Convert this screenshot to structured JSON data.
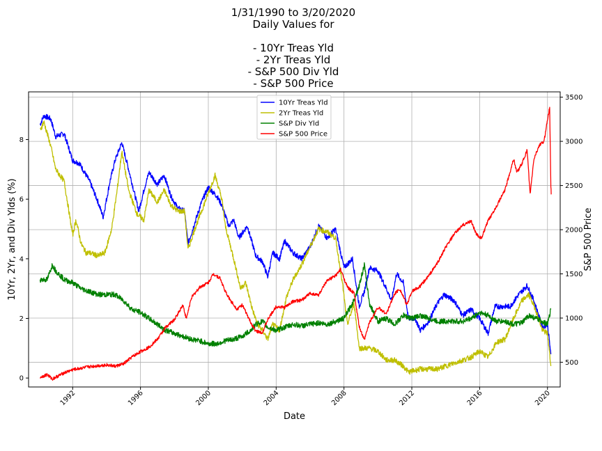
{
  "chart_data": {
    "type": "line",
    "title_lines": [
      "1/31/1990 to 3/20/2020",
      "Daily Values for",
      "",
      "- 10Yr Treas Yld",
      "- 2Yr Treas Yld",
      "- S&P 500 Div Yld",
      "- S&P 500 Price"
    ],
    "xlabel": "Date",
    "ylabel_left": "10Yr, 2Yr, and Div Ylds (%)",
    "ylabel_right": "S&P 500 Price",
    "xlim": [
      1989.4,
      2020.75
    ],
    "ylim_left": [
      -0.3,
      9.6
    ],
    "ylim_right": [
      220,
      3560
    ],
    "x_ticks": [
      1992,
      1996,
      2000,
      2004,
      2008,
      2012,
      2016,
      2020
    ],
    "x_tick_labels": [
      "1992",
      "1996",
      "2000",
      "2004",
      "2008",
      "2012",
      "2016",
      "2020"
    ],
    "y_left_ticks": [
      0,
      2,
      4,
      6,
      8
    ],
    "y_left_tick_labels": [
      "0",
      "2",
      "4",
      "6",
      "8"
    ],
    "y_right_ticks": [
      500,
      1000,
      1500,
      2000,
      2500,
      3000,
      3500
    ],
    "y_right_tick_labels": [
      "500",
      "1000",
      "1500",
      "2000",
      "2500",
      "3000",
      "3500"
    ],
    "grid": true,
    "legend_position": "top-center",
    "series": [
      {
        "name": "10Yr Treas Yld",
        "color": "#0000ff",
        "axis": "left",
        "x": [
          1990.08,
          1990.3,
          1990.7,
          1991.0,
          1991.5,
          1992.0,
          1992.4,
          1993.0,
          1993.5,
          1993.8,
          1994.2,
          1994.5,
          1994.9,
          1995.3,
          1995.9,
          1996.2,
          1996.5,
          1997.0,
          1997.4,
          1997.8,
          1998.2,
          1998.6,
          1998.8,
          1999.2,
          1999.6,
          2000.0,
          2000.5,
          2000.8,
          2001.2,
          2001.5,
          2001.8,
          2002.3,
          2002.8,
          2003.2,
          2003.5,
          2003.8,
          2004.2,
          2004.5,
          2005.0,
          2005.5,
          2006.0,
          2006.5,
          2007.0,
          2007.5,
          2008.0,
          2008.5,
          2008.9,
          2009.2,
          2009.5,
          2010.0,
          2010.5,
          2010.8,
          2011.1,
          2011.5,
          2011.8,
          2012.2,
          2012.5,
          2013.0,
          2013.5,
          2013.9,
          2014.5,
          2015.0,
          2015.5,
          2016.0,
          2016.5,
          2016.9,
          2017.2,
          2017.8,
          2018.3,
          2018.8,
          2019.2,
          2019.7,
          2020.0,
          2020.2
        ],
        "y": [
          8.5,
          8.8,
          8.7,
          8.1,
          8.2,
          7.3,
          7.2,
          6.6,
          5.9,
          5.4,
          6.6,
          7.3,
          7.9,
          7.0,
          5.6,
          6.3,
          6.9,
          6.5,
          6.8,
          6.1,
          5.7,
          5.6,
          4.5,
          5.2,
          5.9,
          6.4,
          6.1,
          5.8,
          5.1,
          5.3,
          4.7,
          5.1,
          4.1,
          3.9,
          3.4,
          4.2,
          4.0,
          4.6,
          4.2,
          4.0,
          4.4,
          5.1,
          4.7,
          5.0,
          3.7,
          4.0,
          2.4,
          2.9,
          3.7,
          3.6,
          3.0,
          2.6,
          3.5,
          3.2,
          2.0,
          2.0,
          1.6,
          1.9,
          2.5,
          2.8,
          2.6,
          2.1,
          2.3,
          2.0,
          1.5,
          2.4,
          2.4,
          2.4,
          2.8,
          3.1,
          2.6,
          1.7,
          1.8,
          0.8
        ]
      },
      {
        "name": "2Yr Treas Yld",
        "color": "#bfbf00",
        "axis": "left",
        "x": [
          1990.08,
          1990.3,
          1990.7,
          1991.0,
          1991.5,
          1992.0,
          1992.2,
          1992.5,
          1992.8,
          1993.0,
          1993.5,
          1993.9,
          1994.3,
          1994.6,
          1994.9,
          1995.3,
          1995.8,
          1996.2,
          1996.5,
          1997.0,
          1997.4,
          1997.8,
          1998.2,
          1998.6,
          1998.8,
          1999.2,
          1999.6,
          2000.0,
          2000.4,
          2000.8,
          2001.0,
          2001.5,
          2001.9,
          2002.2,
          2002.6,
          2002.9,
          2003.2,
          2003.5,
          2003.8,
          2004.2,
          2004.6,
          2005.0,
          2005.5,
          2006.0,
          2006.5,
          2007.0,
          2007.5,
          2007.9,
          2008.2,
          2008.6,
          2008.9,
          2009.5,
          2010.0,
          2010.5,
          2011.0,
          2011.5,
          2011.8,
          2012.5,
          2013.0,
          2013.5,
          2014.0,
          2014.5,
          2015.0,
          2015.5,
          2016.0,
          2016.5,
          2017.0,
          2017.5,
          2018.0,
          2018.5,
          2018.9,
          2019.3,
          2019.7,
          2020.0,
          2020.2
        ],
        "y": [
          8.3,
          8.6,
          7.8,
          7.0,
          6.6,
          4.8,
          5.3,
          4.5,
          4.2,
          4.2,
          4.1,
          4.2,
          5.0,
          6.2,
          7.6,
          6.3,
          5.5,
          5.3,
          6.3,
          5.9,
          6.3,
          5.8,
          5.6,
          5.6,
          4.3,
          5.0,
          5.6,
          6.2,
          6.8,
          6.0,
          5.1,
          4.0,
          3.0,
          3.2,
          2.3,
          1.8,
          1.6,
          1.3,
          1.8,
          1.6,
          2.7,
          3.3,
          3.8,
          4.4,
          5.0,
          4.9,
          4.7,
          3.2,
          1.8,
          2.5,
          1.0,
          1.0,
          0.9,
          0.6,
          0.6,
          0.4,
          0.2,
          0.3,
          0.3,
          0.3,
          0.4,
          0.5,
          0.6,
          0.7,
          0.9,
          0.7,
          1.2,
          1.3,
          2.0,
          2.6,
          2.8,
          2.3,
          1.6,
          1.5,
          0.4
        ]
      },
      {
        "name": "S&P Div Yld",
        "color": "#008000",
        "axis": "left",
        "x": [
          1990.08,
          1990.5,
          1990.8,
          1991.0,
          1991.5,
          1992.0,
          1992.5,
          1993.0,
          1993.5,
          1994.0,
          1994.5,
          1995.0,
          1995.5,
          1996.0,
          1996.5,
          1997.0,
          1997.5,
          1998.0,
          1998.5,
          1999.0,
          1999.5,
          2000.0,
          2000.5,
          2001.0,
          2001.5,
          2002.0,
          2002.5,
          2002.8,
          2003.2,
          2003.5,
          2004.0,
          2004.5,
          2005.0,
          2005.5,
          2006.0,
          2006.5,
          2007.0,
          2007.5,
          2008.0,
          2008.5,
          2008.9,
          2009.2,
          2009.5,
          2010.0,
          2010.5,
          2011.0,
          2011.5,
          2012.0,
          2012.5,
          2013.0,
          2013.5,
          2014.0,
          2014.5,
          2015.0,
          2015.5,
          2016.0,
          2016.5,
          2017.0,
          2017.5,
          2018.0,
          2018.5,
          2018.9,
          2019.3,
          2019.7,
          2020.0,
          2020.2
        ],
        "y": [
          3.3,
          3.3,
          3.8,
          3.6,
          3.3,
          3.2,
          3.0,
          2.9,
          2.8,
          2.8,
          2.8,
          2.6,
          2.3,
          2.2,
          2.0,
          1.8,
          1.6,
          1.5,
          1.4,
          1.3,
          1.25,
          1.15,
          1.15,
          1.25,
          1.3,
          1.4,
          1.6,
          1.8,
          1.9,
          1.7,
          1.6,
          1.7,
          1.8,
          1.75,
          1.8,
          1.85,
          1.8,
          1.9,
          2.0,
          2.5,
          3.1,
          3.8,
          2.5,
          1.9,
          2.0,
          1.8,
          2.1,
          2.0,
          2.1,
          2.0,
          1.9,
          1.9,
          1.9,
          1.9,
          2.0,
          2.2,
          2.1,
          1.9,
          1.9,
          1.8,
          1.85,
          2.1,
          2.0,
          1.9,
          1.8,
          2.3
        ]
      },
      {
        "name": "S&P 500 Price",
        "color": "#ff0000",
        "axis": "right",
        "x": [
          1990.08,
          1990.5,
          1990.8,
          1991.0,
          1991.5,
          1992.0,
          1993.0,
          1994.0,
          1994.5,
          1995.0,
          1995.5,
          1996.0,
          1996.5,
          1997.0,
          1997.5,
          1998.0,
          1998.5,
          1998.7,
          1999.0,
          1999.5,
          2000.0,
          2000.3,
          2000.7,
          2001.0,
          2001.3,
          2001.7,
          2002.0,
          2002.5,
          2002.8,
          2003.2,
          2003.5,
          2004.0,
          2004.5,
          2005.0,
          2005.5,
          2006.0,
          2006.5,
          2007.0,
          2007.5,
          2007.8,
          2008.2,
          2008.6,
          2008.9,
          2009.2,
          2009.5,
          2010.0,
          2010.5,
          2011.0,
          2011.3,
          2011.7,
          2012.0,
          2012.5,
          2013.0,
          2013.5,
          2014.0,
          2014.5,
          2015.0,
          2015.5,
          2015.8,
          2016.1,
          2016.5,
          2017.0,
          2017.5,
          2018.0,
          2018.2,
          2018.5,
          2018.8,
          2018.98,
          2019.2,
          2019.5,
          2019.8,
          2020.0,
          2020.13,
          2020.2,
          2020.22
        ],
        "y": [
          330,
          360,
          310,
          330,
          380,
          415,
          450,
          470,
          455,
          480,
          560,
          620,
          670,
          760,
          900,
          980,
          1150,
          990,
          1230,
          1350,
          1400,
          1500,
          1450,
          1300,
          1200,
          1100,
          1150,
          950,
          850,
          840,
          980,
          1130,
          1120,
          1190,
          1200,
          1280,
          1260,
          1420,
          1480,
          1550,
          1350,
          1280,
          900,
          750,
          950,
          1120,
          1050,
          1280,
          1330,
          1150,
          1300,
          1360,
          1480,
          1620,
          1800,
          1950,
          2050,
          2100,
          1950,
          1900,
          2100,
          2270,
          2450,
          2800,
          2650,
          2750,
          2900,
          2400,
          2800,
          2950,
          3000,
          3250,
          3380,
          2500,
          2400
        ]
      }
    ]
  }
}
